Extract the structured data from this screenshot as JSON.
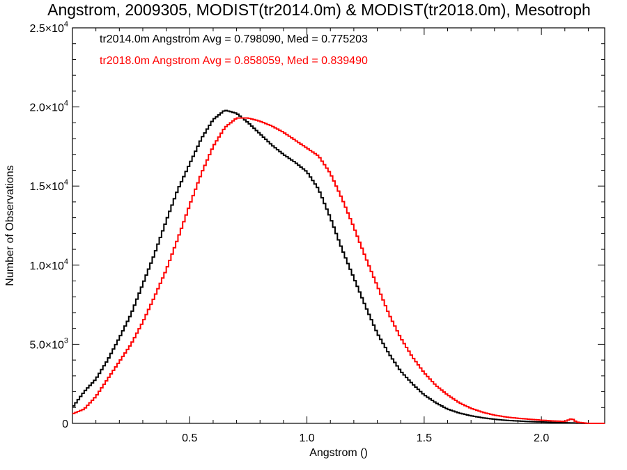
{
  "chart_data": {
    "type": "histogram-step",
    "title": "Angstrom, 2009305, MODIST(tr2014.0m) & MODIST(tr2018.0m), Mesotroph",
    "xlabel": "Angstrom ()",
    "ylabel": "Number of Observations",
    "xlim": [
      0.0,
      2.27
    ],
    "ylim": [
      0,
      25000
    ],
    "x_ticks": [
      {
        "value": 0.5,
        "label": "0.5"
      },
      {
        "value": 1.0,
        "label": "1.0"
      },
      {
        "value": 1.5,
        "label": "1.5"
      },
      {
        "value": 2.0,
        "label": "2.0"
      }
    ],
    "y_ticks": [
      {
        "value": 0,
        "label": "0"
      },
      {
        "value": 5000,
        "mant": "5.0",
        "exp": "3"
      },
      {
        "value": 10000,
        "mant": "1.0",
        "exp": "4"
      },
      {
        "value": 15000,
        "mant": "1.5",
        "exp": "4"
      },
      {
        "value": 20000,
        "mant": "2.0",
        "exp": "4"
      },
      {
        "value": 25000,
        "mant": "2.5",
        "exp": "4"
      }
    ],
    "series": [
      {
        "name": "tr2014.0m",
        "color": "#000000",
        "stats_label": "tr2014.0m Angstrom Avg = 0.798090, Med = 0.775203",
        "points": [
          [
            0.0,
            1000
          ],
          [
            0.05,
            2000
          ],
          [
            0.1,
            2800
          ],
          [
            0.15,
            4000
          ],
          [
            0.2,
            5400
          ],
          [
            0.25,
            6900
          ],
          [
            0.3,
            8800
          ],
          [
            0.35,
            10700
          ],
          [
            0.4,
            12800
          ],
          [
            0.45,
            14800
          ],
          [
            0.5,
            16400
          ],
          [
            0.55,
            18000
          ],
          [
            0.6,
            19200
          ],
          [
            0.65,
            19800
          ],
          [
            0.7,
            19600
          ],
          [
            0.75,
            19000
          ],
          [
            0.8,
            18300
          ],
          [
            0.85,
            17600
          ],
          [
            0.9,
            17000
          ],
          [
            0.95,
            16500
          ],
          [
            1.0,
            15900
          ],
          [
            1.05,
            14800
          ],
          [
            1.1,
            13000
          ],
          [
            1.15,
            11000
          ],
          [
            1.2,
            9200
          ],
          [
            1.25,
            7400
          ],
          [
            1.3,
            5700
          ],
          [
            1.35,
            4400
          ],
          [
            1.4,
            3300
          ],
          [
            1.45,
            2500
          ],
          [
            1.5,
            1800
          ],
          [
            1.55,
            1300
          ],
          [
            1.6,
            900
          ],
          [
            1.65,
            650
          ],
          [
            1.7,
            480
          ],
          [
            1.75,
            350
          ],
          [
            1.8,
            260
          ],
          [
            1.85,
            190
          ],
          [
            1.9,
            150
          ],
          [
            1.95,
            110
          ],
          [
            2.0,
            90
          ],
          [
            2.05,
            60
          ],
          [
            2.1,
            40
          ],
          [
            2.15,
            20
          ],
          [
            2.2,
            0
          ],
          [
            2.27,
            0
          ]
        ]
      },
      {
        "name": "tr2018.0m",
        "color": "#ff0000",
        "stats_label": "tr2018.0m Angstrom Avg = 0.858059, Med = 0.839490",
        "points": [
          [
            0.0,
            600
          ],
          [
            0.05,
            900
          ],
          [
            0.1,
            1700
          ],
          [
            0.15,
            2800
          ],
          [
            0.2,
            3900
          ],
          [
            0.25,
            5000
          ],
          [
            0.3,
            6400
          ],
          [
            0.35,
            8000
          ],
          [
            0.4,
            9700
          ],
          [
            0.45,
            11700
          ],
          [
            0.5,
            13800
          ],
          [
            0.55,
            15800
          ],
          [
            0.6,
            17500
          ],
          [
            0.65,
            18700
          ],
          [
            0.7,
            19300
          ],
          [
            0.75,
            19300
          ],
          [
            0.8,
            19100
          ],
          [
            0.85,
            18800
          ],
          [
            0.9,
            18400
          ],
          [
            0.95,
            17900
          ],
          [
            1.0,
            17400
          ],
          [
            1.05,
            16900
          ],
          [
            1.1,
            15800
          ],
          [
            1.15,
            14200
          ],
          [
            1.2,
            12400
          ],
          [
            1.25,
            10500
          ],
          [
            1.3,
            8700
          ],
          [
            1.35,
            6900
          ],
          [
            1.4,
            5400
          ],
          [
            1.45,
            4200
          ],
          [
            1.5,
            3200
          ],
          [
            1.55,
            2400
          ],
          [
            1.6,
            1800
          ],
          [
            1.65,
            1300
          ],
          [
            1.7,
            950
          ],
          [
            1.75,
            700
          ],
          [
            1.8,
            520
          ],
          [
            1.85,
            400
          ],
          [
            1.9,
            320
          ],
          [
            1.95,
            260
          ],
          [
            2.0,
            200
          ],
          [
            2.05,
            150
          ],
          [
            2.1,
            120
          ],
          [
            2.13,
            300
          ],
          [
            2.15,
            80
          ],
          [
            2.2,
            0
          ],
          [
            2.27,
            0
          ]
        ]
      }
    ]
  }
}
